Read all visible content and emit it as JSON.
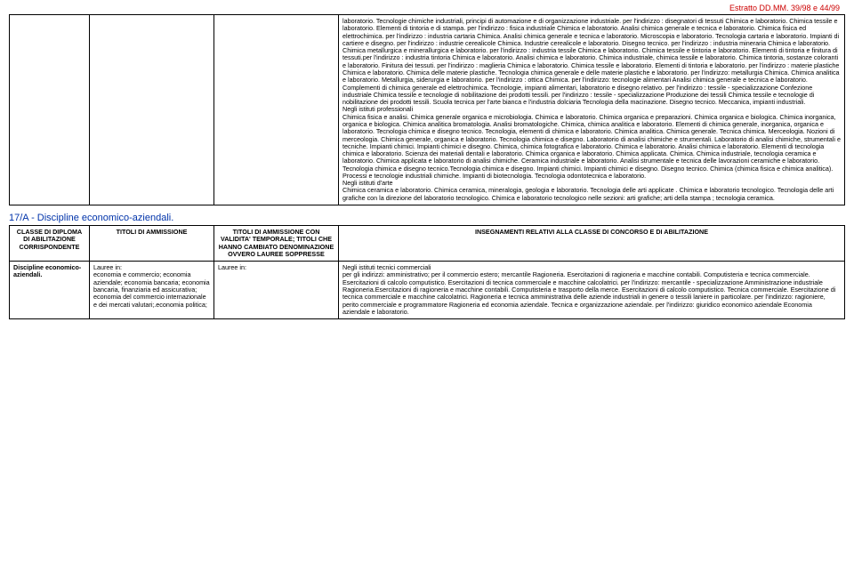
{
  "header": {
    "extractRef": "Estratto DD.MM. 39/98 e 44/99"
  },
  "topTable": {
    "bodyText": "laboratorio. Tecnologie chimiche industriali, principi di automazione e di organizzazione industriale. per l'indirizzo : disegnatori di tessuti Chimica e laboratorio. Chimica tessile e laboratorio. Elementi di tintoria e di stampa. per l'indirizzo : fisica industriale Chimica e laboratorio. Analisi chimica generale e tecnica e laboratorio. Chimica fisica ed elettrochimica. per l'indirizzo : industria cartaria Chimica. Analisi chimica generale e tecnica e laboratorio. Microscopia e laboratorio. Tecnologia cartaria e laboratorio. Impianti di cartiere e disegno. per l'indirizzo : industrie cerealicole Chimica. Industrie cerealicole e laboratorio. Disegno tecnico. per l'indirizzo : industria mineraria Chimica e laboratorio. Chimica metallurgica e minerallurgica e laboratorio. per l'indirizzo : industria tessile Chimica e laboratorio. Chimica tessile e tintoria e laboratorio. Elementi di tintoria e finitura di tessuti.per l'indirizzo : industria tintoria Chimica e laboratorio. Analisi chimica e laboratorio. Chimica industriale, chimica tessile e laboratorio. Chimica tintoria, sostanze coloranti e laboratorio. Finitura dei tessuti. per l'indirizzo : maglieria Chimica e laboratorio. Chimica tessile e laboratorio. Elementi di tintoria e laboratorio. per l'indirizzo : materie plastiche Chimica e laboratorio. Chimica delle materie plastiche. Tecnologia chimica generale e delle materie plastiche e laboratorio. per l'indirizzo: metallurgia Chimica. Chimica analitica e laboratorio. Metallurgia, siderurgia e laboratorio. per l'indirizzo : ottica Chimica. per l'indirizzo: tecnologie alimentari Analisi chimica generale e tecnica e laboratorio. Complementi di chimica generale ed elettrochimica. Tecnologie, impianti alimentari, laboratorio e disegno relativo. per l'indirizzo : tessile - specializzazione Confezione industriale Chimica tessile e tecnologie di nobilitazione dei prodotti tessili. per l'indirizzo : tessile - specializzazione Produzione dei tessili Chimica tessile e tecnologie di nobilitazione dei prodotti tessili. Scuola tecnica per l'arte bianca e l'industria dolciaria Tecnologia della macinazione. Disegno tecnico. Meccanica, impianti industriali.\nNegli istituti professionali\nChimica fisica e analisi. Chimica generale organica e microbiologia. Chimica e laboratorio. Chimica organica e preparazioni. Chimica organica e biologica. Chimica inorganica, organica e biologica. Chimica analitica bromatologia. Analisi bromatologiche. Chimica, chimica analitica e laboratorio. Elementi di chimica generale, inorganica, organica e laboratorio. Tecnologia chimica e disegno tecnico. Tecnologia, elementi di chimica e laboratorio. Chimica analitica. Chimica generale. Tecnica chimica. Merceologia. Nozioni di merceologia. Chimica generale, organica e laboratorio. Tecnologia chimica e disegno. Laboratorio di analisi chimiche e strumentali. Laboratorio di analisi chimiche, strumentali e tecniche. Impianti chimici. Impianti chimici e disegno. Chimica, chimica fotografica e laboratorio. Chimica e laboratorio. Analisi chimica e laboratorio. Elementi di tecnologia chimica e laboratorio. Scienza dei materiali dentali e laboratorio. Chimica organica e laboratorio. Chimica applicata. Chimica. Chimica industriale, tecnologia ceramica e laboratorio. Chimica applicata e laboratorio di analisi chimiche. Ceramica industriale e laboratorio. Analisi strumentale e tecnica delle lavorazioni ceramiche e laboratorio. Tecnologia chimica e disegno tecnico.Tecnologia chimica e disegno. Impianti chimici. Impianti chimici e disegno. Disegno tecnico. Chimica (chimica fisica e chimica analitica). Processi e tecnologie industriali chimiche. Impianti di biotecnologia. Tecnologia odontotecnica e laboratorio.\nNegli istituti d'arte\nChimica ceramica e laboratorio. Chimica ceramica, mineralogia, geologia e laboratorio. Tecnologia delle arti applicate . Chimica e laboratorio tecnologico. Tecnologia delle arti grafiche con la direzione del laboratorio tecnologico. Chimica e laboratorio tecnologico nelle sezioni: arti grafiche; arti della stampa ; tecnologia ceramica."
  },
  "sectionTitle": "17/A - Discipline economico-aziendali.",
  "lowerTable": {
    "headers": {
      "col1": "CLASSE DI DIPLOMA DI ABILITAZIONE CORRISPONDENTE",
      "col2": "TITOLI DI AMMISSIONE",
      "col3": "TITOLI DI AMMISSIONE CON VALIDITA' TEMPORALE; TITOLI CHE HANNO CAMBIATO DENOMINAZIONE OVVERO LAUREE SOPPRESSE",
      "col4": "INSEGNAMENTI RELATIVI ALLA CLASSE DI CONCORSO E DI ABILITAZIONE"
    },
    "row": {
      "col1": "Discipline economico-aziendali.",
      "col2": "Lauree in:\neconomia e commercio; economia aziendale; economia bancaria; economia bancaria, finanziaria ed assicurativa; economia del commercio internazionale e dei mercati valutari;.economia politica;",
      "col3": "Lauree in:",
      "col4": "Negli istituti tecnici commerciali\nper gli indirizzi: amministrativo; per il commercio estero; mercantile Ragioneria. Esercitazioni di ragioneria e macchine contabili. Computisteria e tecnica commerciale. Esercitazioni di calcolo computistico. Esercitazioni di tecnica commerciale e macchine calcolatrici. per l'indirizzo: mercantile - specializzazione Amministrazione industriale Ragioneria.Esercitazioni di ragioneria e macchine contabili. Computisteria e trasporto della merce. Esercitazioni di calcolo computistico. Tecnica commerciale. Esercitazione di tecnica commerciale e macchine calcolatrici. Ragioneria e tecnica amministrativa delle aziende industriali in genere o tessili laniere in particolare. per l'indirizzo: ragioniere, perito commerciale e programmatore Ragioneria ed economia aziendale. Tecnica e organizzazione aziendale. per l'indirizzo: giuridico economico aziendale Economia aziendale e laboratorio."
    }
  }
}
